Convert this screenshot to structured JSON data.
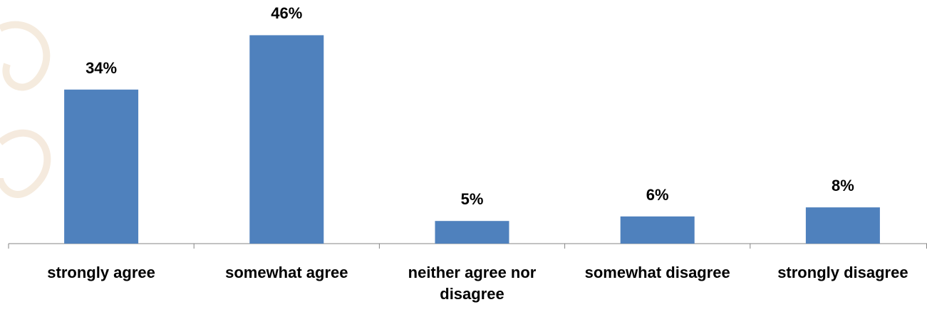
{
  "chart_data": {
    "type": "bar",
    "categories": [
      "strongly agree",
      "somewhat agree",
      "neither agree nor disagree",
      "somewhat disagree",
      "strongly disagree"
    ],
    "values": [
      34,
      46,
      5,
      6,
      8
    ],
    "value_labels": [
      "34%",
      "46%",
      "5%",
      "6%",
      "8%"
    ],
    "color": "#4f81bd"
  }
}
